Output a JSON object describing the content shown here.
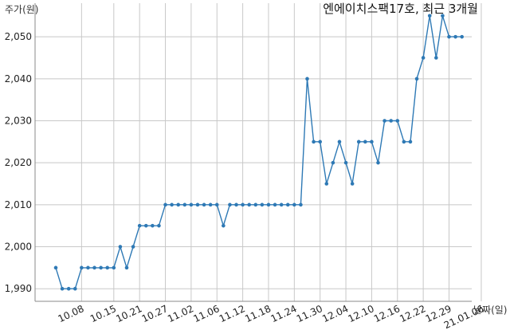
{
  "chart_data": {
    "type": "line",
    "title": "엔에이치스팩17호, 최근 3개월",
    "ylabel": "주가(원)",
    "xlabel": "날짜(일)",
    "ylim": [
      1987,
      2058
    ],
    "yticks": [
      1990,
      2000,
      2010,
      2020,
      2030,
      2040,
      2050
    ],
    "ytick_labels": [
      "1,990",
      "2,000",
      "2,010",
      "2,020",
      "2,030",
      "2,040",
      "2,050"
    ],
    "xtick_labels": [
      "10.08",
      "10.15",
      "10.21",
      "10.27",
      "11.02",
      "11.06",
      "11.12",
      "11.18",
      "11.24",
      "11.30",
      "12.04",
      "12.10",
      "12.16",
      "12.22",
      "12.29",
      "21.01.06"
    ],
    "xtick_index": [
      4,
      9,
      13,
      17,
      21,
      25,
      29,
      33,
      37,
      41,
      45,
      49,
      53,
      57,
      61,
      66
    ],
    "grid": true,
    "series": [
      {
        "values": [
          1995,
          1990,
          1990,
          1990,
          1995,
          1995,
          1995,
          1995,
          1995,
          1995,
          2000,
          1995,
          2000,
          2005,
          2005,
          2005,
          2005,
          2010,
          2010,
          2010,
          2010,
          2010,
          2010,
          2010,
          2010,
          2010,
          2005,
          2010,
          2010,
          2010,
          2010,
          2010,
          2010,
          2010,
          2010,
          2010,
          2010,
          2010,
          2010,
          2040,
          2025,
          2025,
          2015,
          2020,
          2025,
          2020,
          2015,
          2025,
          2025,
          2025,
          2020,
          2030,
          2030,
          2030,
          2025,
          2025,
          2040,
          2045,
          2055,
          2045,
          2055,
          2050,
          2050,
          2050
        ],
        "color": "#2e79b5"
      }
    ]
  }
}
